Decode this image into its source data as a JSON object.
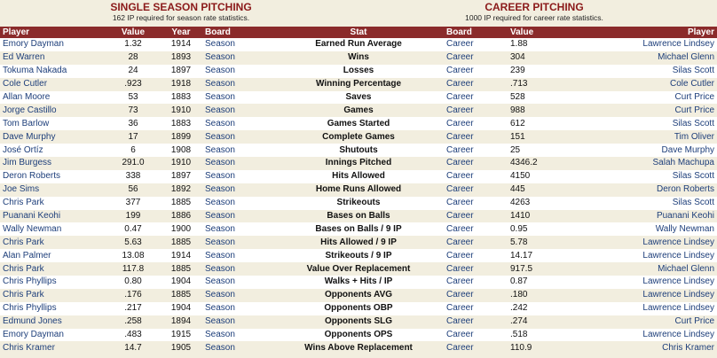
{
  "single": {
    "title": "SINGLE SEASON PITCHING",
    "subtitle": "162 IP required for season rate statistics."
  },
  "career": {
    "title": "CAREER PITCHING",
    "subtitle": "1000 IP required for career rate statistics."
  },
  "columns": {
    "player": "Player",
    "value": "Value",
    "year": "Year",
    "board": "Board",
    "stat": "Stat",
    "cboard": "Board",
    "cvalue": "Value",
    "cplayer": "Player"
  },
  "rows": [
    {
      "player": "Emory Dayman",
      "value": "1.32",
      "year": "1914",
      "board": "Season",
      "stat": "Earned Run Average",
      "cboard": "Career",
      "cvalue": "1.88",
      "cplayer": "Lawrence Lindsey"
    },
    {
      "player": "Ed Warren",
      "value": "28",
      "year": "1893",
      "board": "Season",
      "stat": "Wins",
      "cboard": "Career",
      "cvalue": "304",
      "cplayer": "Michael Glenn"
    },
    {
      "player": "Tokuma Nakada",
      "value": "24",
      "year": "1897",
      "board": "Season",
      "stat": "Losses",
      "cboard": "Career",
      "cvalue": "239",
      "cplayer": "Silas Scott"
    },
    {
      "player": "Cole Cutler",
      "value": ".923",
      "year": "1918",
      "board": "Season",
      "stat": "Winning Percentage",
      "cboard": "Career",
      "cvalue": ".713",
      "cplayer": "Cole Cutler"
    },
    {
      "player": "Allan Moore",
      "value": "53",
      "year": "1883",
      "board": "Season",
      "stat": "Saves",
      "cboard": "Career",
      "cvalue": "528",
      "cplayer": "Curt Price"
    },
    {
      "player": "Jorge Castillo",
      "value": "73",
      "year": "1910",
      "board": "Season",
      "stat": "Games",
      "cboard": "Career",
      "cvalue": "988",
      "cplayer": "Curt Price"
    },
    {
      "player": "Tom Barlow",
      "value": "36",
      "year": "1883",
      "board": "Season",
      "stat": "Games Started",
      "cboard": "Career",
      "cvalue": "612",
      "cplayer": "Silas Scott"
    },
    {
      "player": "Dave Murphy",
      "value": "17",
      "year": "1899",
      "board": "Season",
      "stat": "Complete Games",
      "cboard": "Career",
      "cvalue": "151",
      "cplayer": "Tim Oliver"
    },
    {
      "player": "José Ortíz",
      "value": "6",
      "year": "1908",
      "board": "Season",
      "stat": "Shutouts",
      "cboard": "Career",
      "cvalue": "25",
      "cplayer": "Dave Murphy"
    },
    {
      "player": "Jim Burgess",
      "value": "291.0",
      "year": "1910",
      "board": "Season",
      "stat": "Innings Pitched",
      "cboard": "Career",
      "cvalue": "4346.2",
      "cplayer": "Salah Machupa"
    },
    {
      "player": "Deron Roberts",
      "value": "338",
      "year": "1897",
      "board": "Season",
      "stat": "Hits Allowed",
      "cboard": "Career",
      "cvalue": "4150",
      "cplayer": "Silas Scott"
    },
    {
      "player": "Joe Sims",
      "value": "56",
      "year": "1892",
      "board": "Season",
      "stat": "Home Runs Allowed",
      "cboard": "Career",
      "cvalue": "445",
      "cplayer": "Deron Roberts"
    },
    {
      "player": "Chris Park",
      "value": "377",
      "year": "1885",
      "board": "Season",
      "stat": "Strikeouts",
      "cboard": "Career",
      "cvalue": "4263",
      "cplayer": "Silas Scott"
    },
    {
      "player": "Puanani Keohi",
      "value": "199",
      "year": "1886",
      "board": "Season",
      "stat": "Bases on Balls",
      "cboard": "Career",
      "cvalue": "1410",
      "cplayer": "Puanani Keohi"
    },
    {
      "player": "Wally Newman",
      "value": "0.47",
      "year": "1900",
      "board": "Season",
      "stat": "Bases on Balls / 9 IP",
      "cboard": "Career",
      "cvalue": "0.95",
      "cplayer": "Wally Newman"
    },
    {
      "player": "Chris Park",
      "value": "5.63",
      "year": "1885",
      "board": "Season",
      "stat": "Hits Allowed / 9 IP",
      "cboard": "Career",
      "cvalue": "5.78",
      "cplayer": "Lawrence Lindsey"
    },
    {
      "player": "Alan Palmer",
      "value": "13.08",
      "year": "1914",
      "board": "Season",
      "stat": "Strikeouts / 9 IP",
      "cboard": "Career",
      "cvalue": "14.17",
      "cplayer": "Lawrence Lindsey"
    },
    {
      "player": "Chris Park",
      "value": "117.8",
      "year": "1885",
      "board": "Season",
      "stat": "Value Over Replacement",
      "cboard": "Career",
      "cvalue": "917.5",
      "cplayer": "Michael Glenn"
    },
    {
      "player": "Chris Phyllips",
      "value": "0.80",
      "year": "1904",
      "board": "Season",
      "stat": "Walks + Hits / IP",
      "cboard": "Career",
      "cvalue": "0.87",
      "cplayer": "Lawrence Lindsey"
    },
    {
      "player": "Chris Park",
      "value": ".176",
      "year": "1885",
      "board": "Season",
      "stat": "Opponents AVG",
      "cboard": "Career",
      "cvalue": ".180",
      "cplayer": "Lawrence Lindsey"
    },
    {
      "player": "Chris Phyllips",
      "value": ".217",
      "year": "1904",
      "board": "Season",
      "stat": "Opponents OBP",
      "cboard": "Career",
      "cvalue": ".242",
      "cplayer": "Lawrence Lindsey"
    },
    {
      "player": "Edmund Jones",
      "value": ".258",
      "year": "1894",
      "board": "Season",
      "stat": "Opponents SLG",
      "cboard": "Career",
      "cvalue": ".274",
      "cplayer": "Curt Price"
    },
    {
      "player": "Emory Dayman",
      "value": ".483",
      "year": "1915",
      "board": "Season",
      "stat": "Opponents OPS",
      "cboard": "Career",
      "cvalue": ".518",
      "cplayer": "Lawrence Lindsey"
    },
    {
      "player": "Chris Kramer",
      "value": "14.7",
      "year": "1905",
      "board": "Season",
      "stat": "Wins Above Replacement",
      "cboard": "Career",
      "cvalue": "110.9",
      "cplayer": "Chris Kramer"
    }
  ],
  "colors": {
    "title": "#8b1a1a",
    "header_bg": "#8b2b2b",
    "link": "#1d3e7a",
    "row_alt": "#f2eedf"
  }
}
